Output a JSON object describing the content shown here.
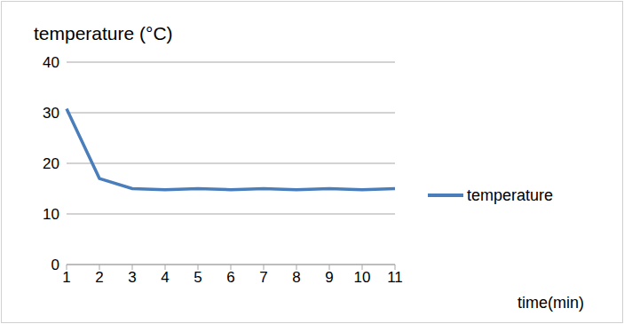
{
  "chart_data": {
    "type": "line",
    "y_label": "temperature (°C)",
    "x_label": "time(min)",
    "categories": [
      "1",
      "2",
      "3",
      "4",
      "5",
      "6",
      "7",
      "8",
      "9",
      "10",
      "11"
    ],
    "series": [
      {
        "name": "temperature",
        "color": "#4a7ebb",
        "values": [
          30.8,
          17,
          15,
          14.8,
          15,
          14.8,
          15,
          14.8,
          15,
          14.8,
          15
        ]
      }
    ],
    "ylim": [
      0,
      40
    ],
    "yticks": [
      0,
      10,
      20,
      30,
      40
    ],
    "grid": true,
    "legend": "right"
  }
}
